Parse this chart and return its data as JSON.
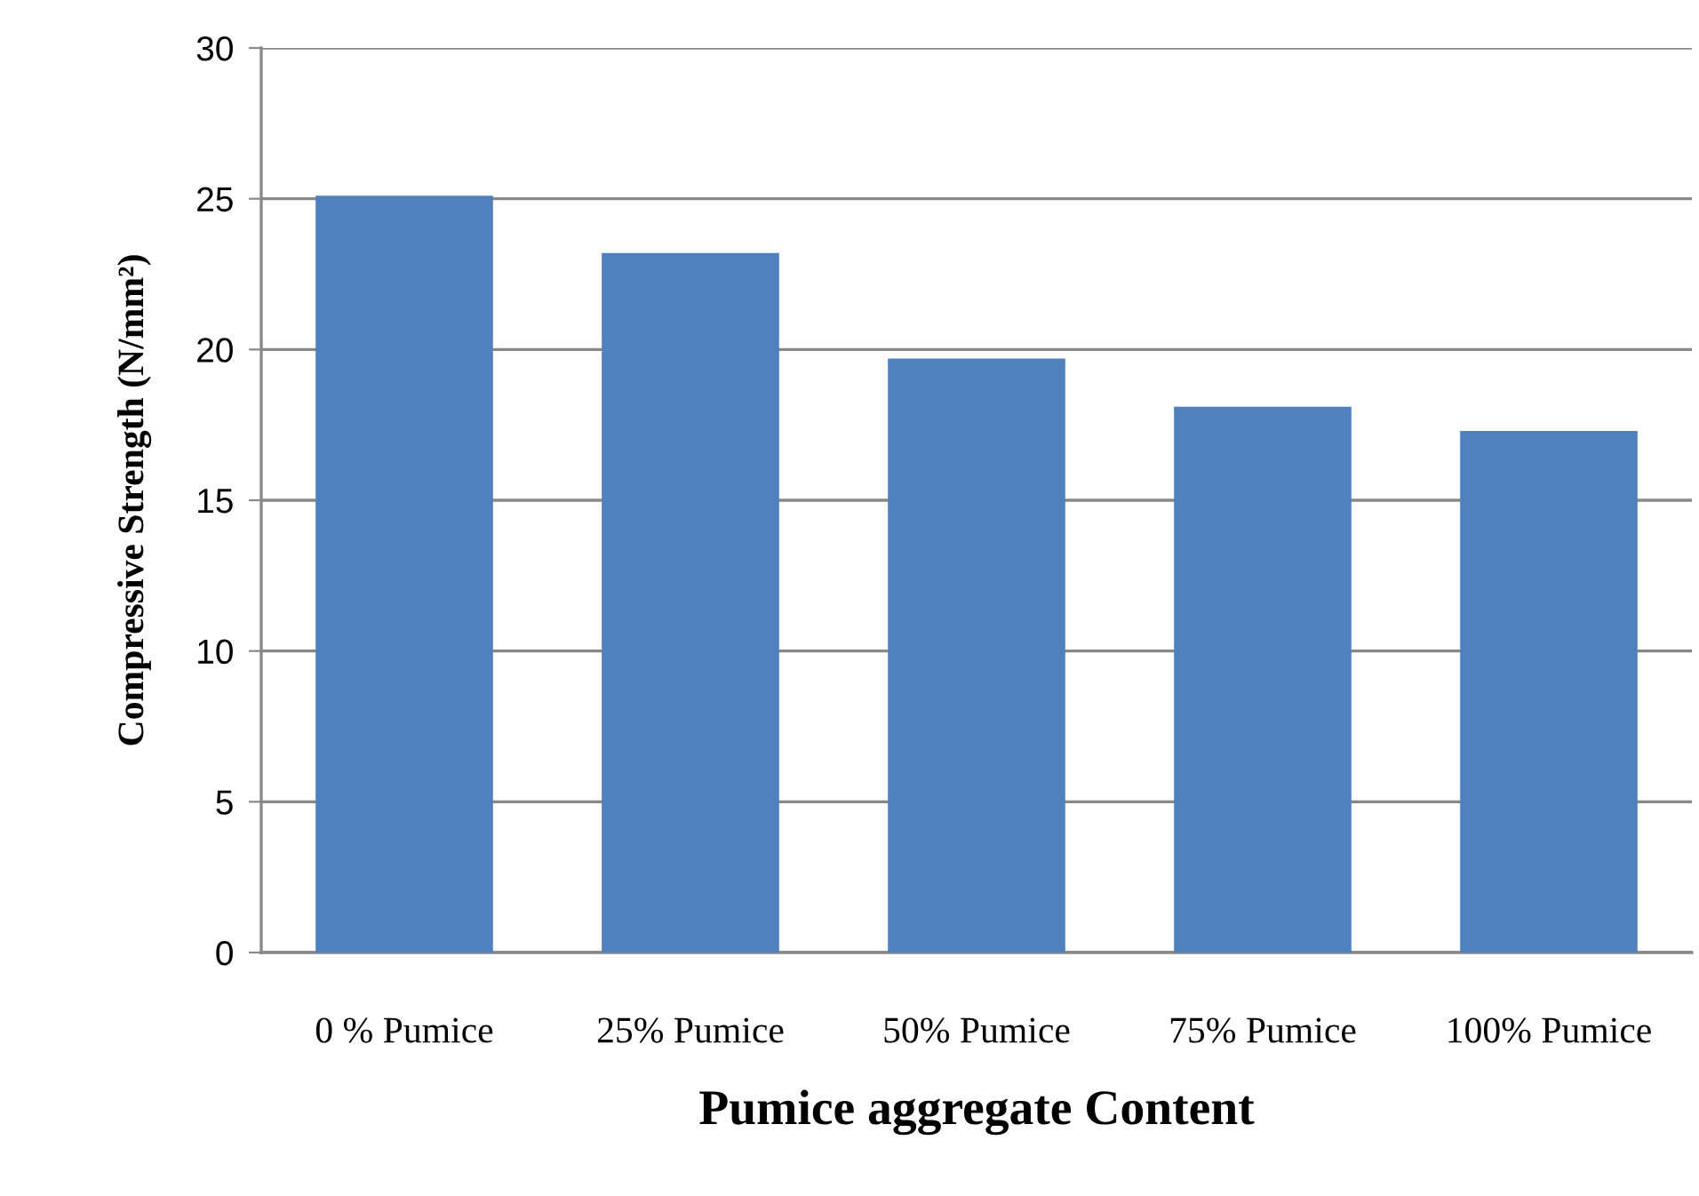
{
  "chart_data": {
    "type": "bar",
    "xlabel": "Pumice aggregate Content",
    "ylabel": "Compressive Strength (N/mm²)",
    "categories": [
      "0 % Pumice",
      "25% Pumice",
      "50% Pumice",
      "75% Pumice",
      "100% Pumice"
    ],
    "values": [
      25.1,
      23.2,
      19.7,
      18.1,
      17.3
    ],
    "color": "#4f81bd",
    "ylim": [
      0,
      30
    ],
    "yticks": [
      0,
      5,
      10,
      15,
      20,
      25,
      30
    ],
    "grid": "y",
    "legend": false
  }
}
